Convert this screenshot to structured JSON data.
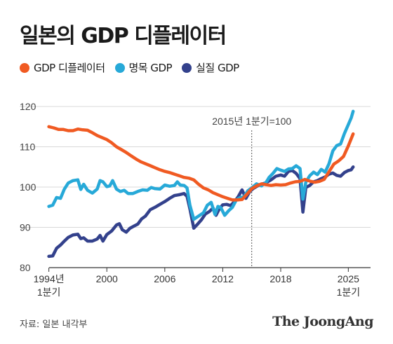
{
  "title": "일본의 GDP 디플레이터",
  "source": "자료: 일본 내각부",
  "brand": "The JoongAng",
  "chart_data": {
    "type": "line",
    "title": "일본의 GDP 디플레이터",
    "annotation": "2015년 1분기=100",
    "annotation_x": 2015.0,
    "xlim": [
      1993.3,
      2027.3
    ],
    "ylim": [
      80,
      120
    ],
    "grid": "horizontal",
    "legend_position": "top-left",
    "y_ticks": [
      80,
      90,
      100,
      110,
      120
    ],
    "x_ticks": [
      {
        "x": 1994.0,
        "label": "1994년",
        "sublabel": "1분기"
      },
      {
        "x": 2000.0,
        "label": "2000",
        "sublabel": ""
      },
      {
        "x": 2006.0,
        "label": "2006",
        "sublabel": ""
      },
      {
        "x": 2012.0,
        "label": "2012",
        "sublabel": ""
      },
      {
        "x": 2018.0,
        "label": "2018",
        "sublabel": ""
      },
      {
        "x": 2025.0,
        "label": "2025",
        "sublabel": "1분기"
      }
    ],
    "series": [
      {
        "name": "GDP 디플레이터",
        "color": "#f05a22",
        "points": [
          [
            1994.0,
            115
          ],
          [
            1994.5,
            114.7
          ],
          [
            1995.0,
            114.3
          ],
          [
            1995.5,
            114.3
          ],
          [
            1996.0,
            114
          ],
          [
            1996.5,
            114
          ],
          [
            1997.0,
            114.4
          ],
          [
            1997.5,
            114.2
          ],
          [
            1998.0,
            114.1
          ],
          [
            1998.5,
            113.5
          ],
          [
            1999.0,
            112.8
          ],
          [
            1999.5,
            112.3
          ],
          [
            2000.0,
            111.8
          ],
          [
            2000.5,
            111
          ],
          [
            2001.0,
            110
          ],
          [
            2001.5,
            109.3
          ],
          [
            2002.0,
            108.6
          ],
          [
            2002.5,
            107.8
          ],
          [
            2003.0,
            107
          ],
          [
            2003.5,
            106.3
          ],
          [
            2004.0,
            105.8
          ],
          [
            2004.5,
            105.3
          ],
          [
            2005.0,
            104.8
          ],
          [
            2005.5,
            104.3
          ],
          [
            2006.0,
            103.9
          ],
          [
            2006.5,
            103.6
          ],
          [
            2007.0,
            103.2
          ],
          [
            2007.5,
            102.8
          ],
          [
            2008.0,
            102.4
          ],
          [
            2008.5,
            102.2
          ],
          [
            2009.0,
            101.8
          ],
          [
            2009.5,
            100.7
          ],
          [
            2010.0,
            99.8
          ],
          [
            2010.5,
            99.3
          ],
          [
            2011.0,
            98.6
          ],
          [
            2011.5,
            98.1
          ],
          [
            2012.0,
            97.6
          ],
          [
            2012.5,
            97.2
          ],
          [
            2013.0,
            96.8
          ],
          [
            2013.5,
            96.8
          ],
          [
            2014.0,
            96.9
          ],
          [
            2014.5,
            98.2
          ],
          [
            2015.0,
            99.6
          ],
          [
            2015.5,
            100.3
          ],
          [
            2016.0,
            100.8
          ],
          [
            2016.5,
            100.6
          ],
          [
            2017.0,
            100.4
          ],
          [
            2017.5,
            100.6
          ],
          [
            2018.0,
            100.5
          ],
          [
            2018.5,
            100.6
          ],
          [
            2019.0,
            101
          ],
          [
            2019.5,
            101.3
          ],
          [
            2020.0,
            101.4
          ],
          [
            2020.5,
            101.9
          ],
          [
            2021.0,
            101.5
          ],
          [
            2021.5,
            101.2
          ],
          [
            2022.0,
            101.4
          ],
          [
            2022.5,
            101.9
          ],
          [
            2023.0,
            103.8
          ],
          [
            2023.5,
            105.7
          ],
          [
            2024.0,
            106.5
          ],
          [
            2024.5,
            107.6
          ],
          [
            2025.0,
            110.2
          ],
          [
            2025.5,
            113.2
          ]
        ]
      },
      {
        "name": "명목 GDP",
        "color": "#27a9d8",
        "points": [
          [
            1994.0,
            95.2
          ],
          [
            1994.4,
            95.5
          ],
          [
            1994.8,
            97.4
          ],
          [
            1995.2,
            97.2
          ],
          [
            1995.6,
            99.5
          ],
          [
            1996.0,
            101
          ],
          [
            1996.5,
            101.6
          ],
          [
            1997.0,
            101.8
          ],
          [
            1997.3,
            99.4
          ],
          [
            1997.6,
            100.7
          ],
          [
            1998.0,
            99.2
          ],
          [
            1998.5,
            98.5
          ],
          [
            1999.0,
            99.5
          ],
          [
            1999.3,
            101.6
          ],
          [
            1999.6,
            101.3
          ],
          [
            2000.0,
            100.1
          ],
          [
            2000.3,
            100.3
          ],
          [
            2000.6,
            101.6
          ],
          [
            2001.0,
            99.5
          ],
          [
            2001.4,
            98.9
          ],
          [
            2001.8,
            99.2
          ],
          [
            2002.2,
            98.4
          ],
          [
            2002.7,
            98.4
          ],
          [
            2003.2,
            98.9
          ],
          [
            2003.7,
            99.3
          ],
          [
            2004.2,
            99.2
          ],
          [
            2004.6,
            99.9
          ],
          [
            2005.0,
            99.6
          ],
          [
            2005.5,
            99.5
          ],
          [
            2006.0,
            100.5
          ],
          [
            2006.5,
            100.2
          ],
          [
            2007.0,
            100.4
          ],
          [
            2007.3,
            101.3
          ],
          [
            2007.6,
            100.5
          ],
          [
            2008.0,
            100.4
          ],
          [
            2008.3,
            99.8
          ],
          [
            2008.6,
            95.5
          ],
          [
            2009.0,
            92
          ],
          [
            2009.5,
            92.8
          ],
          [
            2010.0,
            93.6
          ],
          [
            2010.4,
            95.5
          ],
          [
            2010.8,
            96.2
          ],
          [
            2011.2,
            93.2
          ],
          [
            2011.5,
            95.2
          ],
          [
            2011.8,
            94.9
          ],
          [
            2012.2,
            93
          ],
          [
            2012.6,
            94.1
          ],
          [
            2013.0,
            95
          ],
          [
            2013.4,
            96.8
          ],
          [
            2013.8,
            97.4
          ],
          [
            2014.2,
            97.6
          ],
          [
            2014.6,
            99.1
          ],
          [
            2015.0,
            99.8
          ],
          [
            2015.5,
            100.8
          ],
          [
            2016.0,
            100.3
          ],
          [
            2016.5,
            101.2
          ],
          [
            2016.8,
            102.4
          ],
          [
            2017.2,
            103.4
          ],
          [
            2017.6,
            104.6
          ],
          [
            2018.0,
            104.2
          ],
          [
            2018.4,
            103.9
          ],
          [
            2018.8,
            104.5
          ],
          [
            2019.2,
            104.6
          ],
          [
            2019.6,
            105.3
          ],
          [
            2020.0,
            104.6
          ],
          [
            2020.3,
            97
          ],
          [
            2020.6,
            101.2
          ],
          [
            2021.0,
            102.8
          ],
          [
            2021.4,
            103.7
          ],
          [
            2021.8,
            103.1
          ],
          [
            2022.2,
            104.4
          ],
          [
            2022.6,
            103.7
          ],
          [
            2023.0,
            105.8
          ],
          [
            2023.4,
            109
          ],
          [
            2023.8,
            110.3
          ],
          [
            2024.2,
            110.7
          ],
          [
            2024.6,
            113.3
          ],
          [
            2025.0,
            115.5
          ],
          [
            2025.3,
            117.2
          ],
          [
            2025.5,
            118.8
          ]
        ]
      },
      {
        "name": "실질 GDP",
        "color": "#33418c",
        "points": [
          [
            1994.0,
            82.8
          ],
          [
            1994.4,
            82.9
          ],
          [
            1994.8,
            84.8
          ],
          [
            1995.2,
            85.6
          ],
          [
            1995.6,
            86.6
          ],
          [
            1996.0,
            87.5
          ],
          [
            1996.5,
            88.1
          ],
          [
            1997.0,
            88.3
          ],
          [
            1997.3,
            87.2
          ],
          [
            1997.6,
            87.4
          ],
          [
            1998.0,
            86.6
          ],
          [
            1998.5,
            86.6
          ],
          [
            1999.0,
            87.1
          ],
          [
            1999.3,
            88
          ],
          [
            1999.6,
            86.6
          ],
          [
            2000.0,
            88.2
          ],
          [
            2000.5,
            89.1
          ],
          [
            2001.0,
            90.6
          ],
          [
            2001.3,
            90.9
          ],
          [
            2001.6,
            89.4
          ],
          [
            2002.0,
            88.8
          ],
          [
            2002.4,
            89.8
          ],
          [
            2002.8,
            90.3
          ],
          [
            2003.2,
            90.8
          ],
          [
            2003.6,
            92.1
          ],
          [
            2004.0,
            92.8
          ],
          [
            2004.5,
            94.4
          ],
          [
            2005.0,
            95
          ],
          [
            2005.5,
            95.7
          ],
          [
            2006.0,
            96.4
          ],
          [
            2006.5,
            97.2
          ],
          [
            2007.0,
            97.9
          ],
          [
            2007.5,
            98.1
          ],
          [
            2008.0,
            98.4
          ],
          [
            2008.3,
            97.7
          ],
          [
            2008.6,
            94.6
          ],
          [
            2009.0,
            89.8
          ],
          [
            2009.4,
            90.8
          ],
          [
            2009.8,
            91.9
          ],
          [
            2010.2,
            93.3
          ],
          [
            2010.6,
            93.9
          ],
          [
            2011.0,
            94.8
          ],
          [
            2011.3,
            93
          ],
          [
            2011.6,
            94.4
          ],
          [
            2012.0,
            95.6
          ],
          [
            2012.4,
            95.7
          ],
          [
            2012.8,
            95.4
          ],
          [
            2013.2,
            96.3
          ],
          [
            2013.6,
            97.6
          ],
          [
            2014.0,
            99.3
          ],
          [
            2014.4,
            97.2
          ],
          [
            2014.8,
            98.9
          ],
          [
            2015.2,
            99.7
          ],
          [
            2015.6,
            100.3
          ],
          [
            2016.0,
            100.7
          ],
          [
            2016.5,
            101.1
          ],
          [
            2017.0,
            101.8
          ],
          [
            2017.5,
            102.7
          ],
          [
            2018.0,
            103
          ],
          [
            2018.4,
            102.7
          ],
          [
            2018.8,
            103.9
          ],
          [
            2019.2,
            104.1
          ],
          [
            2019.6,
            103.4
          ],
          [
            2020.0,
            102.1
          ],
          [
            2020.3,
            93.8
          ],
          [
            2020.6,
            99.9
          ],
          [
            2021.0,
            100.4
          ],
          [
            2021.4,
            101.3
          ],
          [
            2021.8,
            101.6
          ],
          [
            2022.2,
            102.1
          ],
          [
            2022.6,
            102.5
          ],
          [
            2023.0,
            103.2
          ],
          [
            2023.4,
            103.5
          ],
          [
            2023.8,
            102.9
          ],
          [
            2024.2,
            102.7
          ],
          [
            2024.6,
            103.6
          ],
          [
            2025.0,
            104.1
          ],
          [
            2025.3,
            104.3
          ],
          [
            2025.5,
            105
          ]
        ]
      }
    ]
  }
}
